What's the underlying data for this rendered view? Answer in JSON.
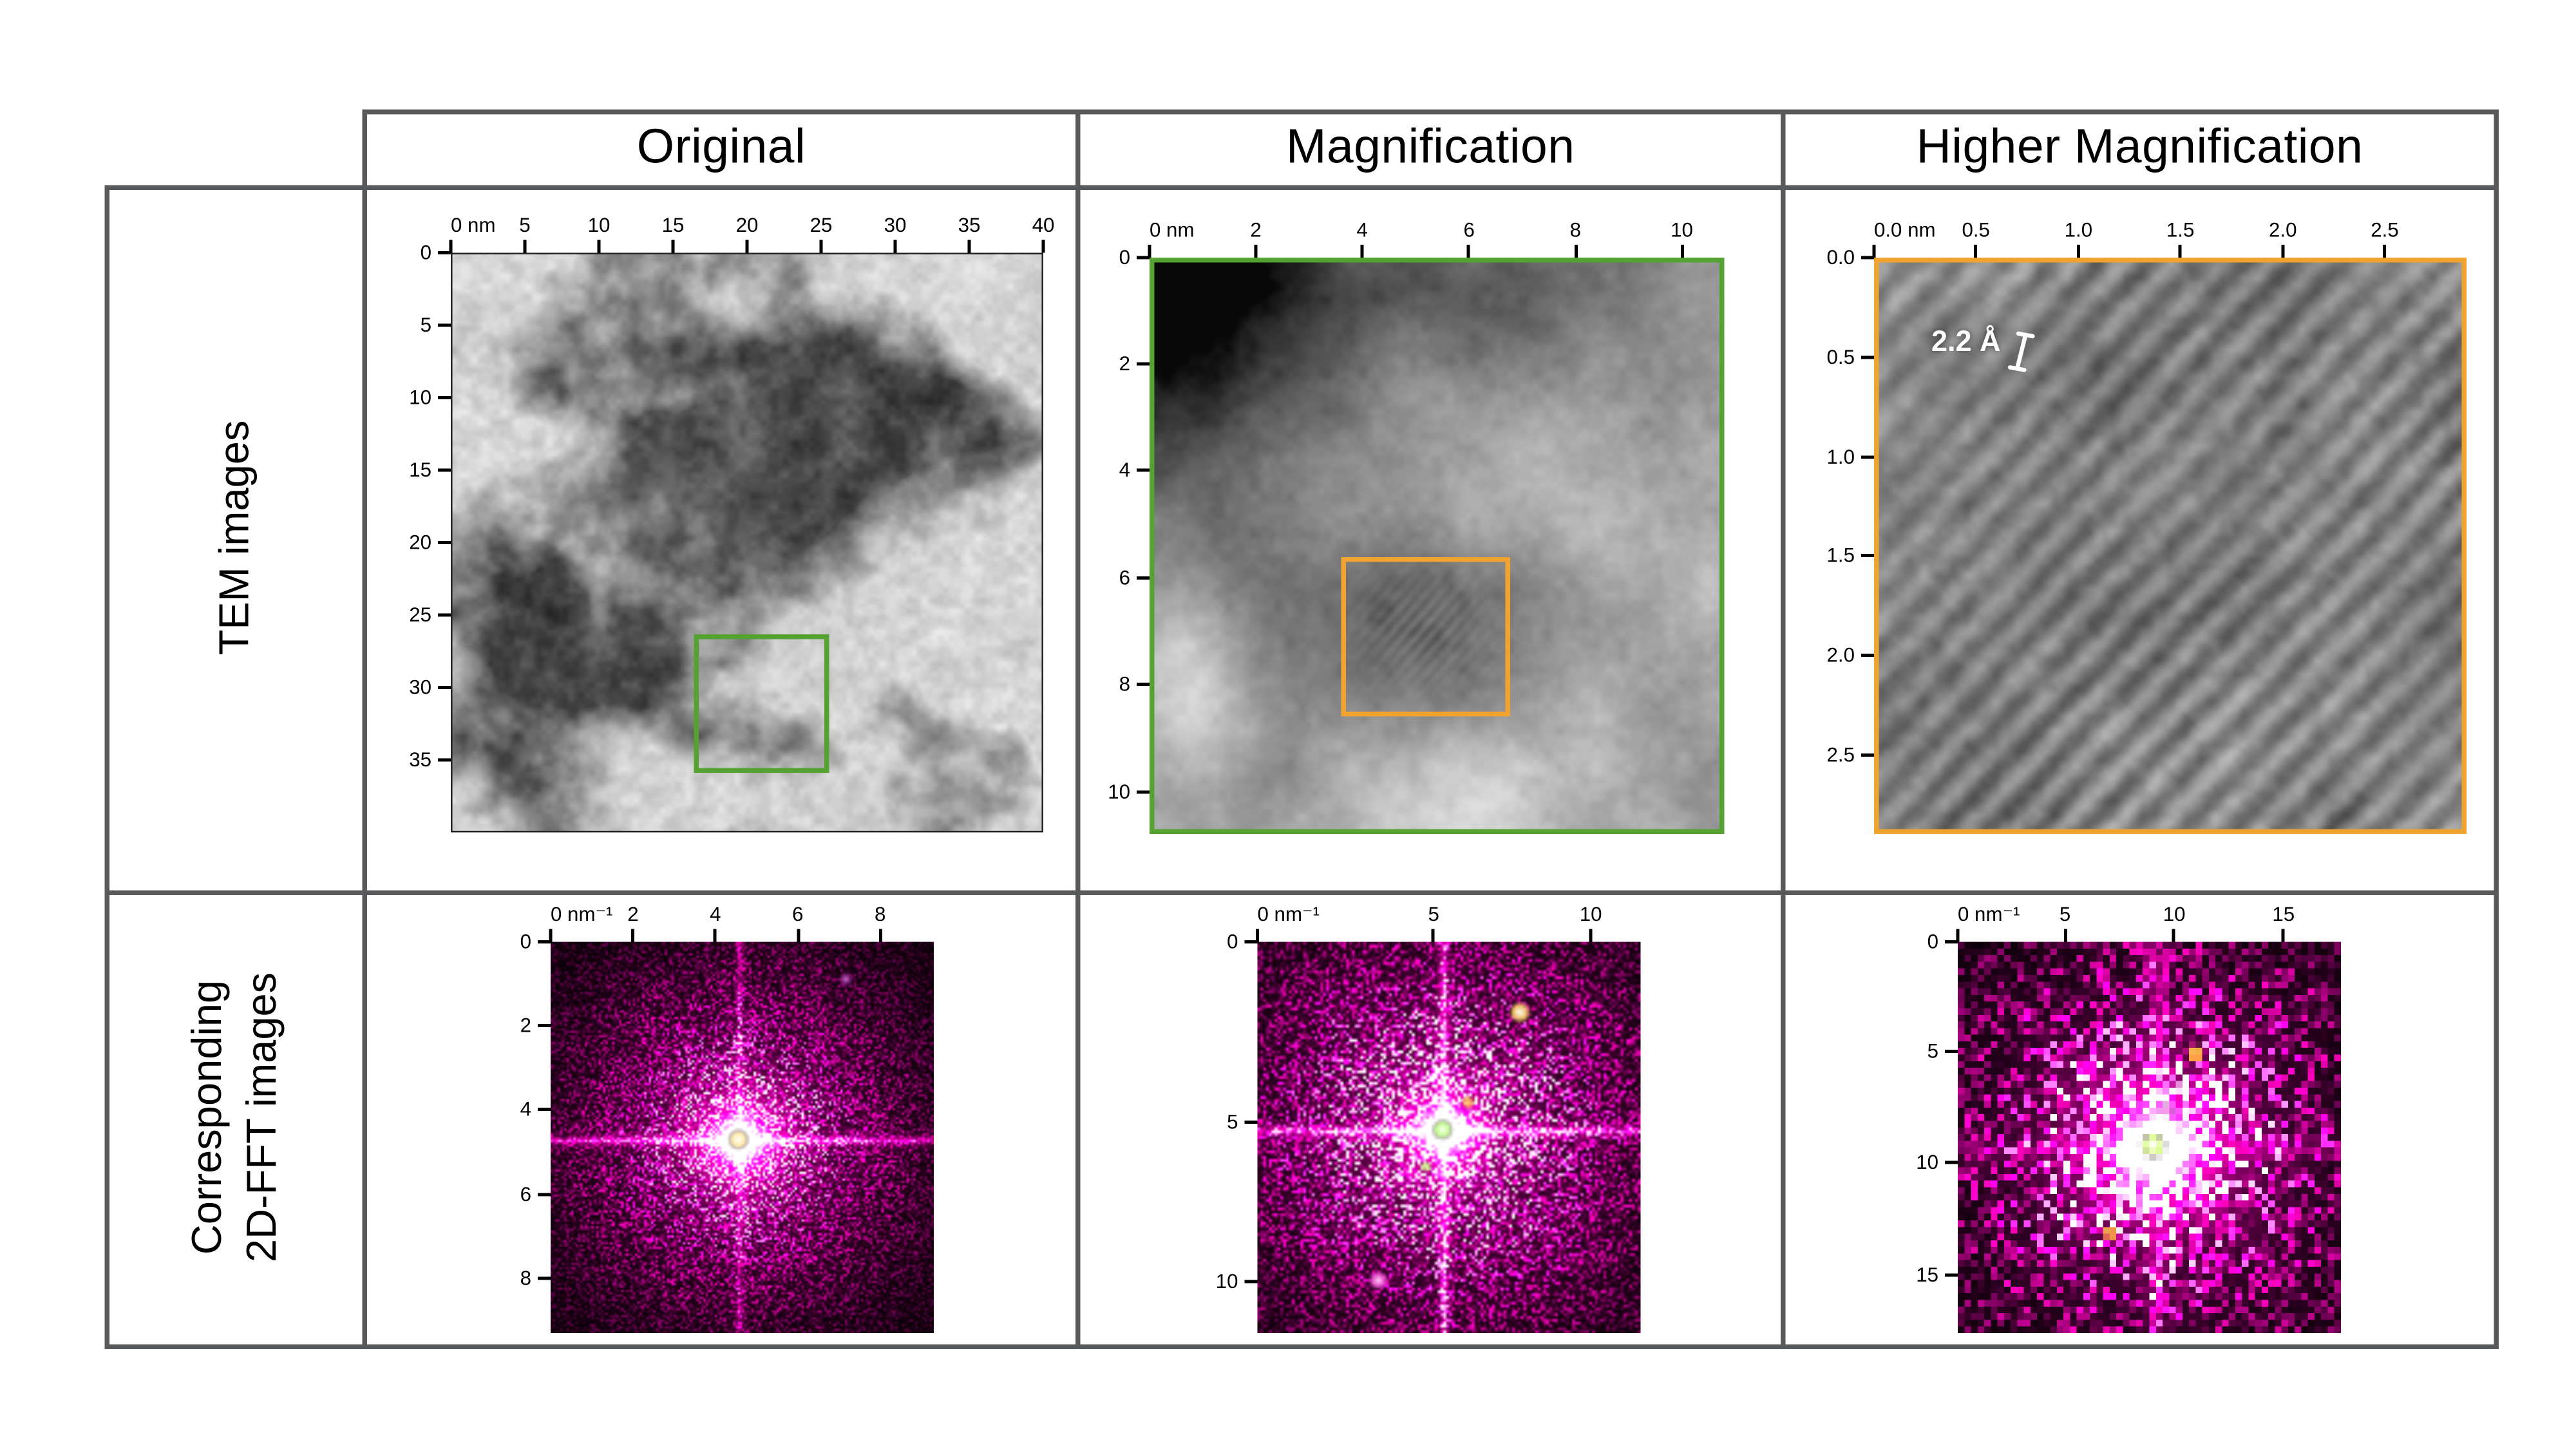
{
  "figure": {
    "columns": [
      {
        "header": "Original"
      },
      {
        "header": "Magnification"
      },
      {
        "header": "Higher Magnification"
      }
    ],
    "rows": [
      {
        "label": "TEM images"
      },
      {
        "label": "Corresponding\n2D-FFT images"
      }
    ]
  },
  "tem_annotation": {
    "label": "2.2 Å"
  },
  "colors": {
    "roi_green": "#55a233",
    "roi_orange": "#f0a32e",
    "grid_line": "#58595b"
  },
  "rulers": {
    "tem_original": {
      "top": [
        {
          "t": "0 nm",
          "p": 0
        },
        {
          "t": "5",
          "p": 0.125
        },
        {
          "t": "10",
          "p": 0.25
        },
        {
          "t": "15",
          "p": 0.375
        },
        {
          "t": "20",
          "p": 0.5
        },
        {
          "t": "25",
          "p": 0.625
        },
        {
          "t": "30",
          "p": 0.75
        },
        {
          "t": "35",
          "p": 0.875
        },
        {
          "t": "40",
          "p": 1
        }
      ],
      "left": [
        {
          "t": "0",
          "p": 0
        },
        {
          "t": "5",
          "p": 0.125
        },
        {
          "t": "10",
          "p": 0.25
        },
        {
          "t": "15",
          "p": 0.375
        },
        {
          "t": "20",
          "p": 0.5
        },
        {
          "t": "25",
          "p": 0.625
        },
        {
          "t": "30",
          "p": 0.75
        },
        {
          "t": "35",
          "p": 0.875
        }
      ]
    },
    "tem_magnification": {
      "top": [
        {
          "t": "0 nm",
          "p": 0
        },
        {
          "t": "2",
          "p": 0.185
        },
        {
          "t": "4",
          "p": 0.37
        },
        {
          "t": "6",
          "p": 0.556
        },
        {
          "t": "8",
          "p": 0.741
        },
        {
          "t": "10",
          "p": 0.926
        }
      ],
      "left": [
        {
          "t": "0",
          "p": 0
        },
        {
          "t": "2",
          "p": 0.185
        },
        {
          "t": "4",
          "p": 0.37
        },
        {
          "t": "6",
          "p": 0.556
        },
        {
          "t": "8",
          "p": 0.741
        },
        {
          "t": "10",
          "p": 0.926
        }
      ]
    },
    "tem_higher": {
      "top": [
        {
          "t": "0.0 nm",
          "p": 0
        },
        {
          "t": "0.5",
          "p": 0.172
        },
        {
          "t": "1.0",
          "p": 0.345
        },
        {
          "t": "1.5",
          "p": 0.517
        },
        {
          "t": "2.0",
          "p": 0.69
        },
        {
          "t": "2.5",
          "p": 0.862
        }
      ],
      "left": [
        {
          "t": "0.0",
          "p": 0
        },
        {
          "t": "0.5",
          "p": 0.172
        },
        {
          "t": "1.0",
          "p": 0.345
        },
        {
          "t": "1.5",
          "p": 0.517
        },
        {
          "t": "2.0",
          "p": 0.69
        },
        {
          "t": "2.5",
          "p": 0.862
        }
      ]
    },
    "fft_original": {
      "top": [
        {
          "t": "0 nm⁻¹",
          "p": 0
        },
        {
          "t": "2",
          "p": 0.215
        },
        {
          "t": "4",
          "p": 0.43
        },
        {
          "t": "6",
          "p": 0.645
        },
        {
          "t": "8",
          "p": 0.86
        }
      ],
      "left": [
        {
          "t": "0",
          "p": 0
        },
        {
          "t": "2",
          "p": 0.215
        },
        {
          "t": "4",
          "p": 0.43
        },
        {
          "t": "6",
          "p": 0.645
        },
        {
          "t": "8",
          "p": 0.86
        }
      ]
    },
    "fft_magnification": {
      "top": [
        {
          "t": "0 nm⁻¹",
          "p": 0
        },
        {
          "t": "5",
          "p": 0.46
        },
        {
          "t": "10",
          "p": 0.87
        }
      ],
      "left": [
        {
          "t": "0",
          "p": 0
        },
        {
          "t": "5",
          "p": 0.46
        },
        {
          "t": "10",
          "p": 0.87
        }
      ]
    },
    "fft_higher": {
      "top": [
        {
          "t": "0 nm⁻¹",
          "p": 0
        },
        {
          "t": "5",
          "p": 0.28
        },
        {
          "t": "10",
          "p": 0.565
        },
        {
          "t": "15",
          "p": 0.85
        }
      ],
      "left": [
        {
          "t": "0",
          "p": 0
        },
        {
          "t": "5",
          "p": 0.28
        },
        {
          "t": "10",
          "p": 0.565
        },
        {
          "t": "15",
          "p": 0.85
        }
      ]
    }
  }
}
